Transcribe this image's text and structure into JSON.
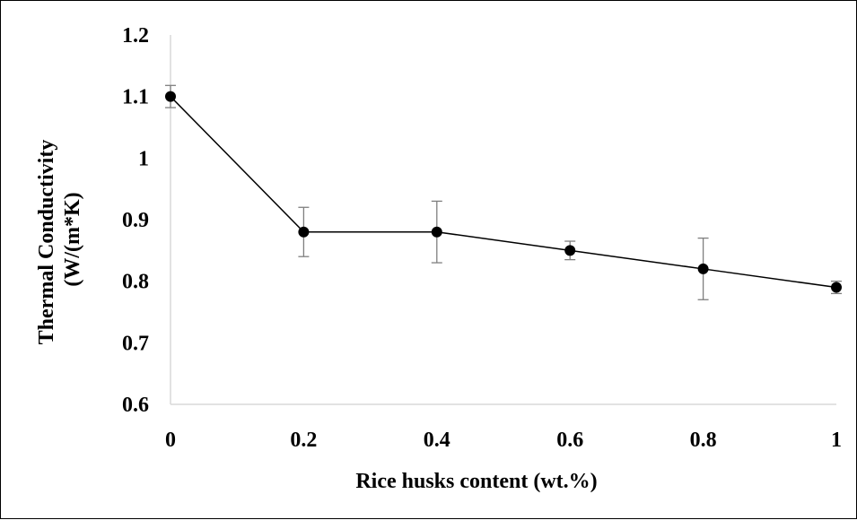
{
  "chart_data": {
    "type": "line",
    "title": "",
    "xlabel": "Rice husks content (wt.%)",
    "ylabel_lines": [
      "Thermal Conductivity",
      "(W/(m*K)"
    ],
    "xlim": [
      0,
      1
    ],
    "ylim": [
      0.6,
      1.2
    ],
    "x_ticks": [
      "0",
      "0.2",
      "0.4",
      "0.6",
      "0.8",
      "1"
    ],
    "y_ticks": [
      "0.6",
      "0.7",
      "0.8",
      "0.9",
      "1",
      "1.1",
      "1.2"
    ],
    "grid": false,
    "legend": "none",
    "series": [
      {
        "x": [
          0,
          0.2,
          0.4,
          0.6,
          0.8,
          1
        ],
        "y": [
          1.1,
          0.88,
          0.88,
          0.85,
          0.82,
          0.79
        ],
        "error": [
          0.018,
          0.04,
          0.05,
          0.015,
          0.05,
          0.01
        ]
      }
    ],
    "colors": {
      "line": "#000000",
      "marker": "#000000",
      "error_bar": "#7f7f7f",
      "axis": "#d9d9d9"
    }
  }
}
